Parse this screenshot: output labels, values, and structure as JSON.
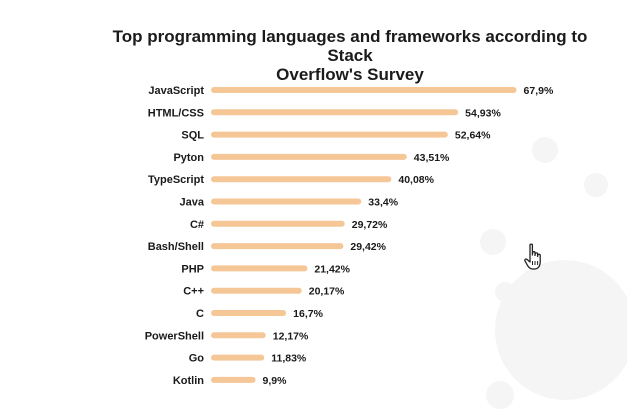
{
  "chart_data": {
    "type": "bar",
    "orientation": "horizontal",
    "title": "Top programming languages and frameworks according to Stack Overflow's Survey",
    "title_lines": [
      "Top programming languages and frameworks according to Stack",
      "Overflow's Survey"
    ],
    "categories": [
      "JavaScript",
      "HTML/CSS",
      "SQL",
      "Pyton",
      "TypeScript",
      "Java",
      "C#",
      "Bash/Shell",
      "PHP",
      "C++",
      "C",
      "PowerShell",
      "Go",
      "Kotlin"
    ],
    "values": [
      67.9,
      54.93,
      52.64,
      43.51,
      40.08,
      33.4,
      29.72,
      29.42,
      21.42,
      20.17,
      16.7,
      12.17,
      11.83,
      9.9
    ],
    "value_labels": [
      "67,9%",
      "54,93%",
      "52,64%",
      "43,51%",
      "40,08%",
      "33,4%",
      "29,72%",
      "29,42%",
      "21,42%",
      "20,17%",
      "16,7%",
      "12,17%",
      "11,83%",
      "9,9%"
    ],
    "xlabel": "",
    "ylabel": "",
    "xlim": [
      0,
      70
    ],
    "grid": false,
    "legend": "none",
    "bar_color": "#f6c796"
  },
  "cursor": {
    "icon": "hand-pointer-icon"
  },
  "background": {
    "icon": "gear-watermark-icon",
    "color": "#f4f4f4"
  }
}
